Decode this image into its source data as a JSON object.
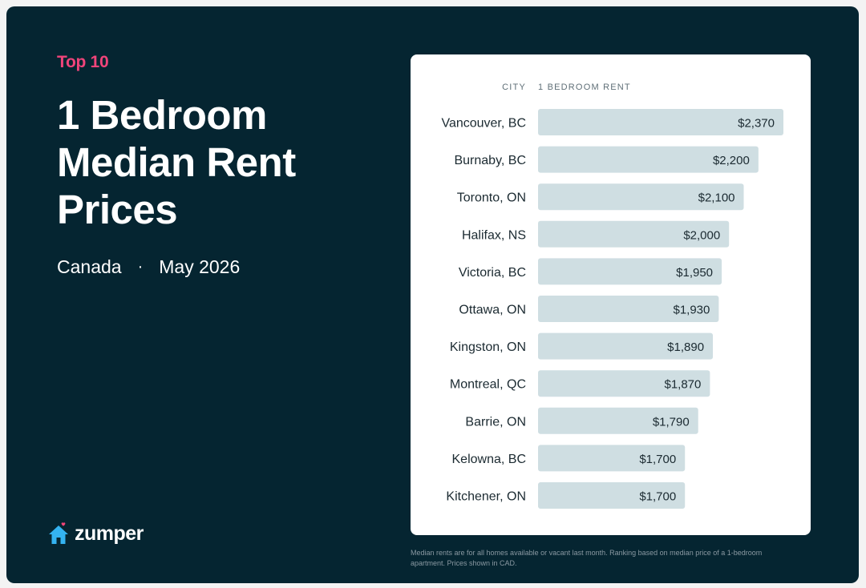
{
  "header": {
    "kicker": "Top 10",
    "title": "1 Bedroom Median Rent Prices",
    "region": "Canada",
    "separator": "·",
    "date": "May 2026"
  },
  "brand": {
    "name": "zumper",
    "icon": "house-heart-icon",
    "colors": {
      "background": "#052531",
      "accent": "#f0447a",
      "house": "#34b3f1",
      "bar": "#cfdee2"
    }
  },
  "footnote": "Median rents are for all homes available or vacant last month. Ranking based on median price of a 1-bedroom apartment. Prices shown in CAD.",
  "chart_data": {
    "type": "bar",
    "orientation": "horizontal",
    "category_header": "CITY",
    "value_header": "1 BEDROOM RENT",
    "categories": [
      "Vancouver, BC",
      "Burnaby, BC",
      "Toronto, ON",
      "Halifax, NS",
      "Victoria, BC",
      "Ottawa, ON",
      "Kingston, ON",
      "Montreal, QC",
      "Barrie, ON",
      "Kelowna, BC",
      "Kitchener, ON"
    ],
    "values": [
      2370,
      2200,
      2100,
      2000,
      1950,
      1930,
      1890,
      1870,
      1790,
      1700,
      1700
    ],
    "labels": [
      "$2,370",
      "$2,200",
      "$2,100",
      "$2,000",
      "$1,950",
      "$1,930",
      "$1,890",
      "$1,870",
      "$1,790",
      "$1,700",
      "$1,700"
    ],
    "xlim": [
      700,
      2370
    ],
    "grid": false,
    "legend": "none"
  }
}
